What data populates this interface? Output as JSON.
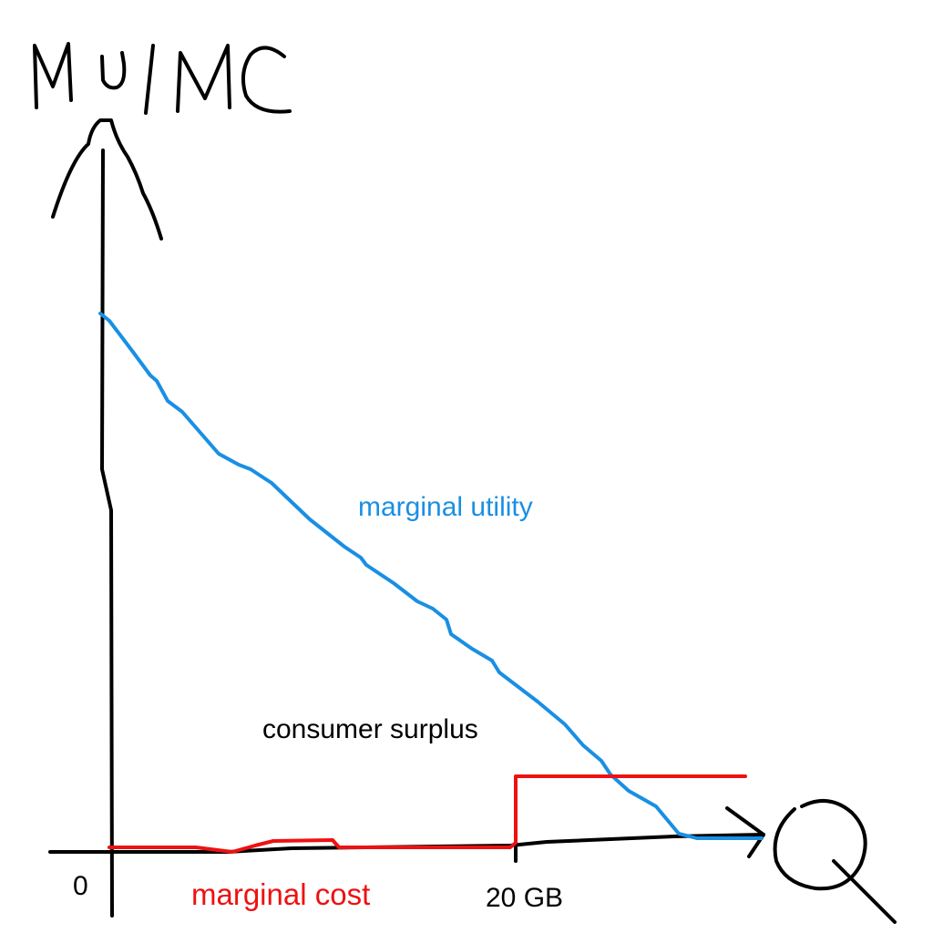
{
  "y_axis_title": "MU/MC",
  "x_axis_title": "Q",
  "labels": {
    "marginal_utility": "marginal utility",
    "consumer_surplus": "consumer surplus",
    "marginal_cost": "marginal cost",
    "origin": "0",
    "threshold": "20 GB"
  },
  "colors": {
    "marginal_utility": "#1a8fe3",
    "marginal_cost": "#ee1111",
    "axes": "#000000"
  }
}
